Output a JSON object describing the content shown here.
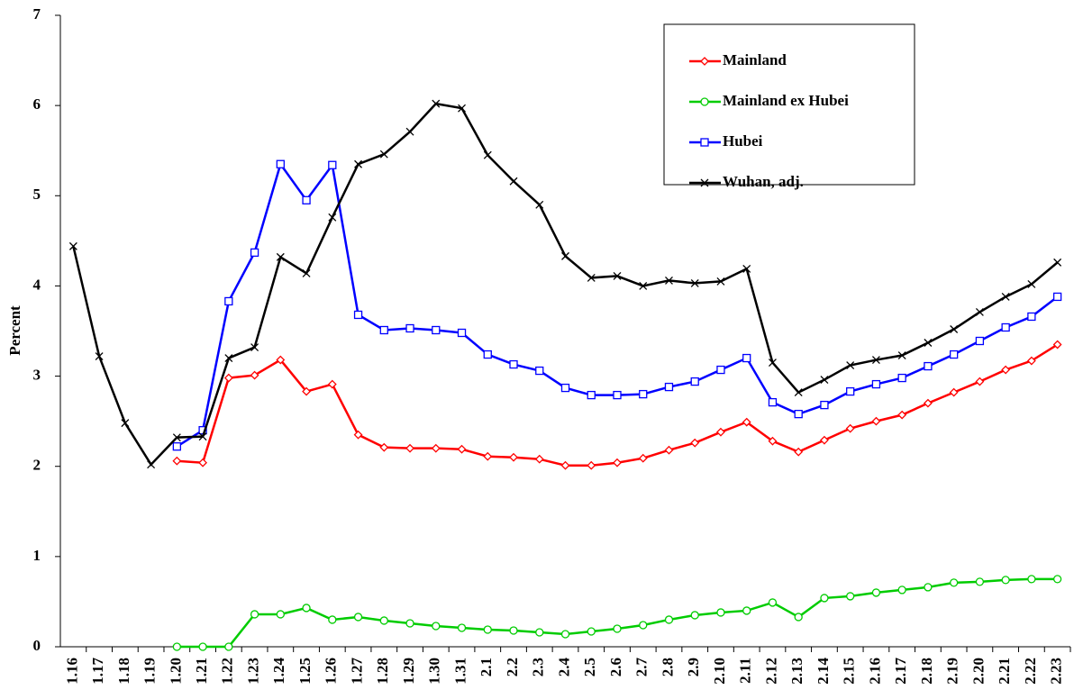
{
  "chart_data": {
    "type": "line",
    "y_label": "Percent",
    "categories": [
      "1.16",
      "1.17",
      "1.18",
      "1.19",
      "1.20",
      "1.21",
      "1.22",
      "1.23",
      "1.24",
      "1.25",
      "1.26",
      "1.27",
      "1.28",
      "1.29",
      "1.30",
      "1.31",
      "2.1",
      "2.2",
      "2.3",
      "2.4",
      "2.5",
      "2.6",
      "2.7",
      "2.8",
      "2.9",
      "2.10",
      "2.11",
      "2.12",
      "2.13",
      "2.14",
      "2.15",
      "2.16",
      "2.17",
      "2.18",
      "2.19",
      "2.20",
      "2.21",
      "2.22",
      "2.23"
    ],
    "series": [
      {
        "name": "Mainland",
        "color": "#ff0000",
        "marker": "diamond",
        "values": [
          null,
          null,
          null,
          null,
          2.06,
          2.04,
          2.98,
          3.01,
          3.18,
          2.83,
          2.91,
          2.35,
          2.21,
          2.2,
          2.2,
          2.19,
          2.11,
          2.1,
          2.08,
          2.01,
          2.01,
          2.04,
          2.09,
          2.18,
          2.26,
          2.38,
          2.49,
          2.28,
          2.16,
          2.29,
          2.42,
          2.5,
          2.57,
          2.7,
          2.82,
          2.94,
          3.07,
          3.17,
          3.35
        ]
      },
      {
        "name": "Mainland ex Hubei",
        "color": "#00cc00",
        "marker": "circle",
        "values": [
          null,
          null,
          null,
          null,
          0,
          0,
          0,
          0.36,
          0.36,
          0.43,
          0.3,
          0.33,
          0.29,
          0.26,
          0.23,
          0.21,
          0.19,
          0.18,
          0.16,
          0.14,
          0.17,
          0.2,
          0.24,
          0.3,
          0.35,
          0.38,
          0.4,
          0.49,
          0.33,
          0.54,
          0.56,
          0.6,
          0.63,
          0.66,
          0.71,
          0.72,
          0.74,
          0.75,
          0.75
        ]
      },
      {
        "name": "Hubei",
        "color": "#0000ff",
        "marker": "square",
        "values": [
          null,
          null,
          null,
          null,
          2.22,
          2.4,
          3.83,
          4.37,
          5.35,
          4.95,
          5.34,
          3.68,
          3.51,
          3.53,
          3.51,
          3.48,
          3.24,
          3.13,
          3.06,
          2.87,
          2.79,
          2.79,
          2.8,
          2.88,
          2.94,
          3.07,
          3.2,
          2.71,
          2.58,
          2.68,
          2.83,
          2.91,
          2.98,
          3.11,
          3.24,
          3.39,
          3.54,
          3.66,
          3.88
        ]
      },
      {
        "name": "Wuhan, adj.",
        "color": "#000000",
        "marker": "x",
        "values": [
          4.44,
          3.22,
          2.48,
          2.02,
          2.32,
          2.33,
          3.2,
          3.32,
          4.32,
          4.14,
          4.76,
          5.35,
          5.46,
          5.71,
          6.02,
          5.97,
          5.45,
          5.16,
          4.9,
          4.33,
          4.09,
          4.11,
          4.0,
          4.06,
          4.03,
          4.05,
          4.19,
          3.15,
          2.82,
          2.96,
          3.12,
          3.18,
          3.23,
          3.37,
          3.52,
          3.71,
          3.88,
          4.02,
          4.26
        ]
      }
    ],
    "ylim": [
      0,
      7
    ],
    "yticks": [
      0,
      1,
      2,
      3,
      4,
      5,
      6,
      7
    ],
    "legend": "top-right"
  }
}
